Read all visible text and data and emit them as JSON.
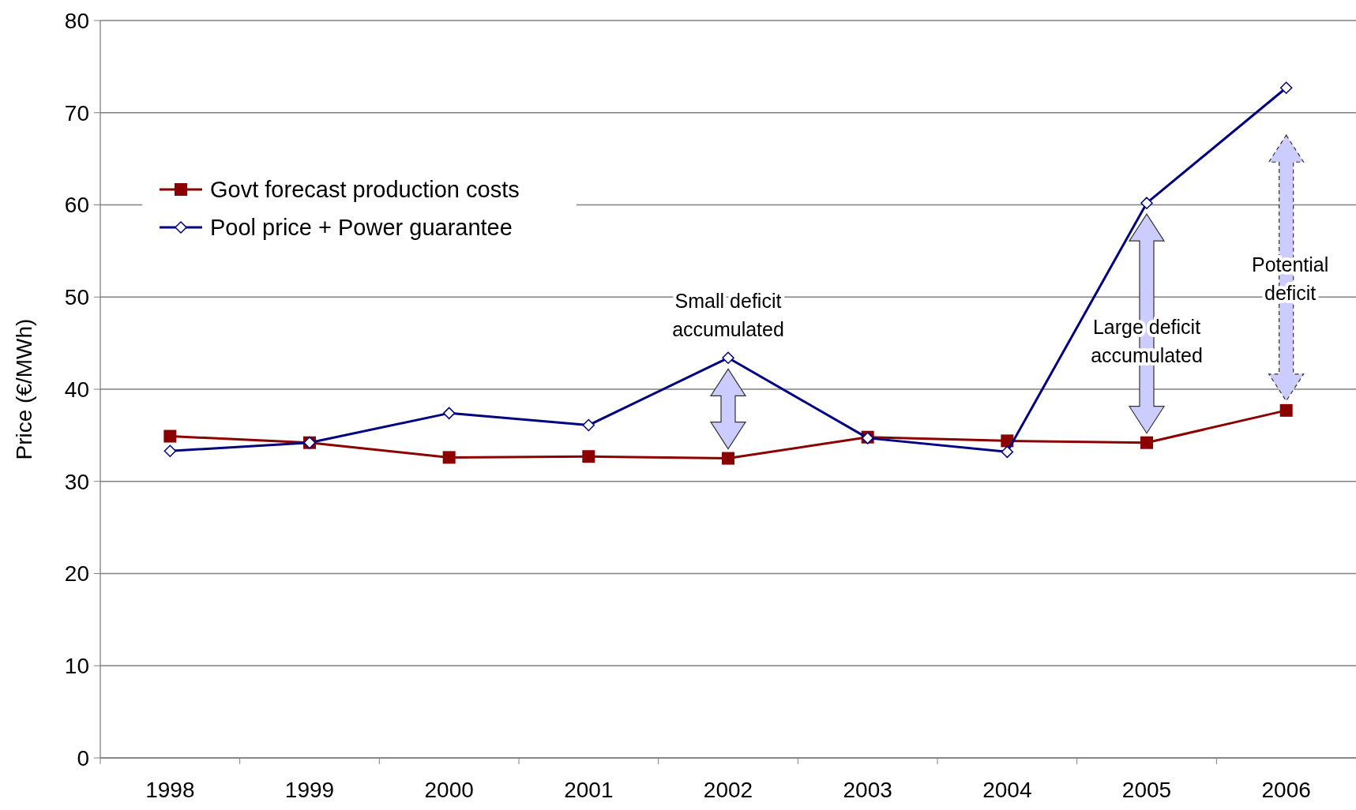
{
  "chart_data": {
    "type": "line",
    "ylabel": "Price (€/MWh)",
    "categories": [
      "1998",
      "1999",
      "2000",
      "2001",
      "2002",
      "2003",
      "2004",
      "2005",
      "2006"
    ],
    "ylim": [
      0,
      80
    ],
    "yticks": [
      0,
      10,
      20,
      30,
      40,
      50,
      60,
      70,
      80
    ],
    "grid": "y",
    "legend": "top left",
    "series": [
      {
        "name": "Govt forecast production costs",
        "color": "#8b0000",
        "marker": "square",
        "values": [
          34.9,
          34.2,
          32.6,
          32.7,
          32.5,
          34.8,
          34.4,
          34.2,
          37.7
        ]
      },
      {
        "name": "Pool price + Power guarantee",
        "color": "#000080",
        "marker": "diamond",
        "values": [
          33.3,
          34.2,
          37.4,
          36.1,
          43.4,
          34.7,
          33.2,
          60.2,
          72.7
        ]
      }
    ],
    "annotations": [
      "Small deficit accumulated",
      "Large deficit accumulated",
      "Potential deficit"
    ]
  }
}
